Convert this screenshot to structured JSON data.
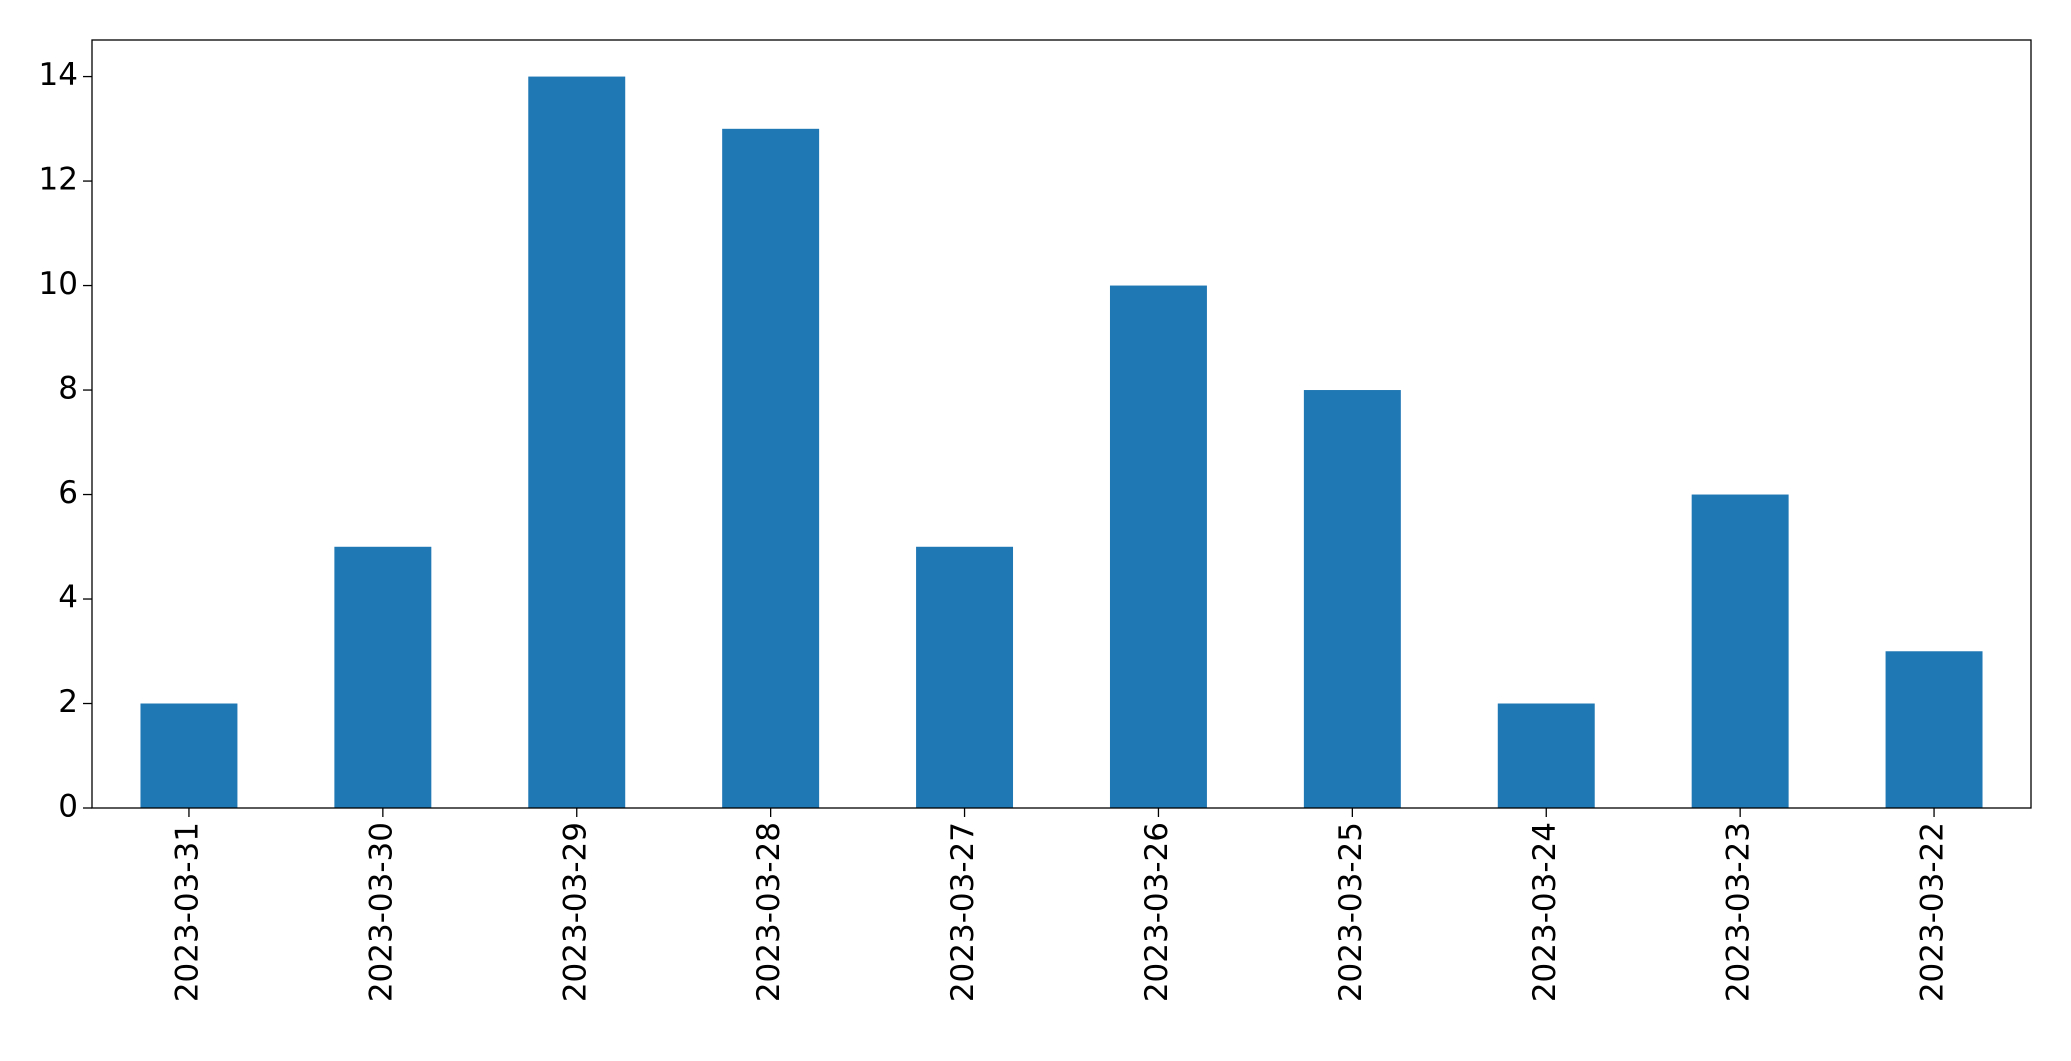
{
  "chart_data": {
    "type": "bar",
    "categories": [
      "2023-03-31",
      "2023-03-30",
      "2023-03-29",
      "2023-03-28",
      "2023-03-27",
      "2023-03-26",
      "2023-03-25",
      "2023-03-24",
      "2023-03-23",
      "2023-03-22"
    ],
    "values": [
      2,
      5,
      14,
      13,
      5,
      10,
      8,
      2,
      6,
      3
    ],
    "color": "#1f77b4",
    "ylim": [
      0,
      14.7
    ],
    "yticks": [
      0,
      2,
      4,
      6,
      8,
      10,
      12,
      14
    ],
    "grid": false
  }
}
